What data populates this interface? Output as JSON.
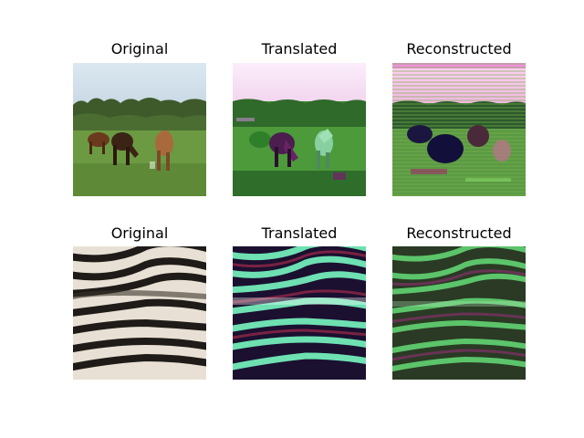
{
  "figure": {
    "rows": [
      {
        "subject": "horses",
        "panels": [
          {
            "title": "Original"
          },
          {
            "title": "Translated"
          },
          {
            "title": "Reconstructed"
          }
        ]
      },
      {
        "subject": "zebra",
        "panels": [
          {
            "title": "Original"
          },
          {
            "title": "Translated"
          },
          {
            "title": "Reconstructed"
          }
        ]
      }
    ]
  }
}
